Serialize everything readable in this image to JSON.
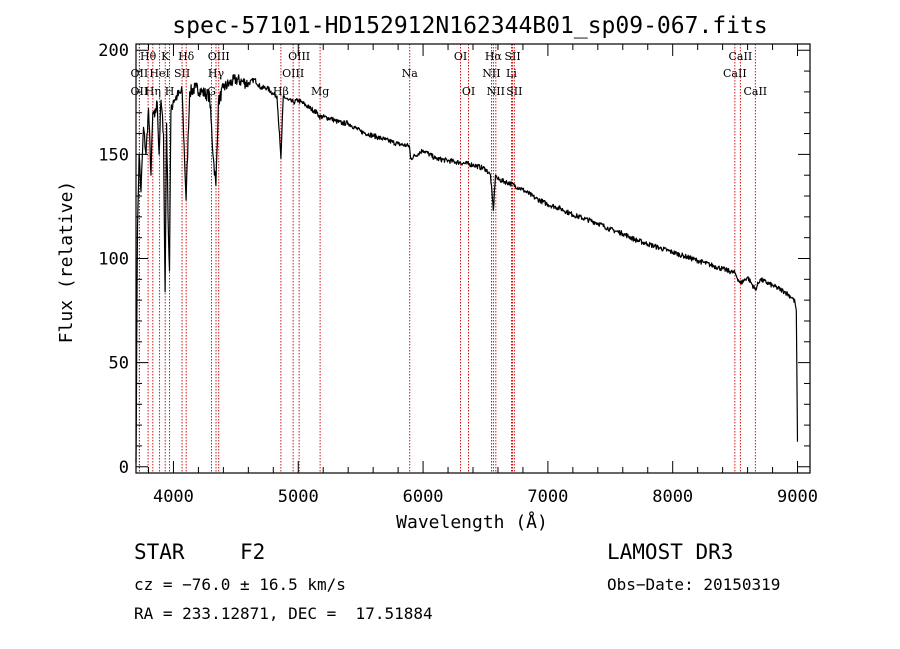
{
  "chart_data": {
    "type": "line",
    "title": "spec-57101-HD152912N162344B01_sp09-067.fits",
    "xlabel": "Wavelength (Å)",
    "ylabel": "Flux (relative)",
    "xlim": [
      3700,
      9100
    ],
    "ylim": [
      -3,
      203
    ],
    "xticks": [
      4000,
      5000,
      6000,
      7000,
      8000,
      9000
    ],
    "yticks": [
      0,
      50,
      100,
      150,
      200
    ],
    "series": [
      {
        "name": "spectrum",
        "color": "#000000",
        "x": [
          3700,
          3706,
          3712,
          3725,
          3740,
          3760,
          3780,
          3800,
          3820,
          3835,
          3850,
          3870,
          3885,
          3900,
          3920,
          3933,
          3945,
          3960,
          3968,
          3980,
          4000,
          4030,
          4070,
          4101,
          4130,
          4180,
          4230,
          4290,
          4320,
          4340,
          4360,
          4400,
          4450,
          4500,
          4550,
          4600,
          4650,
          4700,
          4750,
          4800,
          4830,
          4861,
          4880,
          4920,
          4960,
          5000,
          5050,
          5100,
          5150,
          5170,
          5200,
          5270,
          5300,
          5350,
          5400,
          5500,
          5600,
          5700,
          5800,
          5890,
          5900,
          6000,
          6100,
          6200,
          6300,
          6400,
          6500,
          6540,
          6563,
          6580,
          6600,
          6700,
          6800,
          6900,
          7000,
          7100,
          7200,
          7300,
          7400,
          7500,
          7600,
          7700,
          7800,
          7900,
          8000,
          8100,
          8200,
          8300,
          8400,
          8498,
          8542,
          8600,
          8662,
          8700,
          8800,
          8900,
          8960,
          8980,
          8990,
          9000
        ],
        "values": [
          2,
          58,
          115,
          150,
          132,
          163,
          150,
          172,
          140,
          170,
          168,
          175,
          150,
          176,
          160,
          84,
          165,
          110,
          94,
          170,
          176,
          178,
          180,
          128,
          180,
          182,
          180,
          178,
          148,
          135,
          175,
          182,
          184,
          186,
          185,
          184,
          186,
          182,
          182,
          179,
          178,
          148,
          178,
          176,
          175,
          176,
          174,
          172,
          170,
          168,
          168,
          167,
          166,
          165,
          165,
          161,
          159,
          157,
          155,
          154,
          148,
          152,
          148,
          147,
          146,
          145,
          143,
          140,
          123,
          140,
          138,
          136,
          133,
          129,
          126,
          124,
          121,
          119,
          117,
          114,
          112,
          109,
          107,
          105,
          103,
          101,
          99,
          97,
          95,
          93,
          88,
          91,
          85,
          90,
          87,
          84,
          81,
          79,
          75,
          12
        ]
      }
    ],
    "line_color": "#cc0000",
    "lines": [
      {
        "label": "Hθ",
        "x": 3797,
        "row": 0
      },
      {
        "label": "OII",
        "x": 3727,
        "row": 1
      },
      {
        "label": "OII",
        "x": 3727,
        "row": 2
      },
      {
        "label": "Hη",
        "x": 3835,
        "row": 2
      },
      {
        "label": "HeI",
        "x": 3889,
        "row": 1
      },
      {
        "label": "K",
        "x": 3934,
        "row": 0
      },
      {
        "label": "SII",
        "x": 4069,
        "row": 1
      },
      {
        "label": "H",
        "x": 3969,
        "row": 2
      },
      {
        "label": "Hδ",
        "x": 4102,
        "row": 0
      },
      {
        "label": "OIII",
        "x": 4363,
        "row": 0
      },
      {
        "label": "Hγ",
        "x": 4341,
        "row": 1
      },
      {
        "label": "G",
        "x": 4305,
        "row": 2
      },
      {
        "label": "OIII",
        "x": 5007,
        "row": 0
      },
      {
        "label": "OIII",
        "x": 4959,
        "row": 1
      },
      {
        "label": "Hβ",
        "x": 4861,
        "row": 2
      },
      {
        "label": "Mg",
        "x": 5175,
        "row": 2
      },
      {
        "label": "Na",
        "x": 5893,
        "row": 1
      },
      {
        "label": "OI",
        "x": 6300,
        "row": 0
      },
      {
        "label": "OI",
        "x": 6364,
        "row": 2
      },
      {
        "label": "Hα",
        "x": 6563,
        "row": 0
      },
      {
        "label": "SII",
        "x": 6717,
        "row": 0
      },
      {
        "label": "NII",
        "x": 6548,
        "row": 1
      },
      {
        "label": "Li",
        "x": 6708,
        "row": 1
      },
      {
        "label": "NII",
        "x": 6583,
        "row": 2
      },
      {
        "label": "SII",
        "x": 6731,
        "row": 2
      },
      {
        "label": "CaII",
        "x": 8542,
        "row": 0
      },
      {
        "label": "CaII",
        "x": 8498,
        "row": 1
      },
      {
        "label": "CaII",
        "x": 8662,
        "row": 2
      }
    ]
  },
  "info": {
    "object_type": "STAR",
    "subclass": "F2",
    "survey": "LAMOST DR3",
    "cz": "cz = −76.0 ± 16.5 km/s",
    "obs_date": "Obs−Date: 20150319",
    "coords": "RA = 233.12871, DEC =  17.51884"
  }
}
